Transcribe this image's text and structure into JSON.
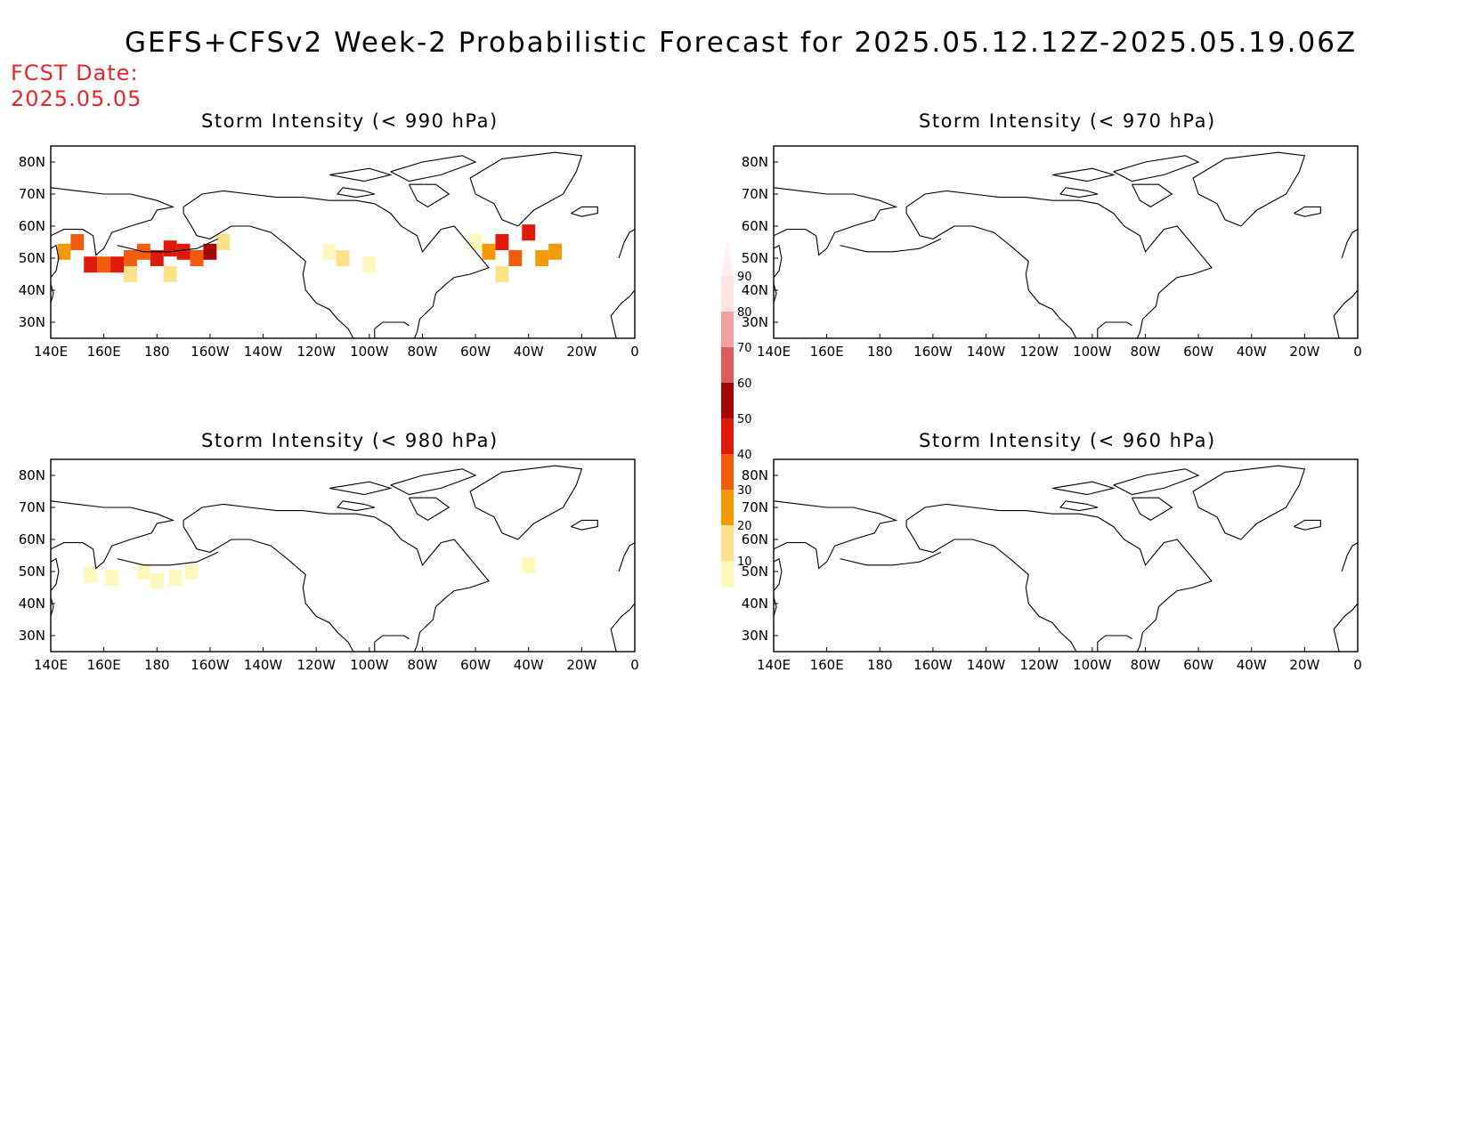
{
  "title": "GEFS+CFSv2 Week-2 Probabilistic Forecast for 2025.05.12.12Z-2025.05.19.06Z",
  "fcst_date": {
    "label": "FCST Date:",
    "value": "2025.05.05"
  },
  "axes": {
    "lon_ticks": [
      "140E",
      "160E",
      "180",
      "160W",
      "140W",
      "120W",
      "100W",
      "80W",
      "60W",
      "40W",
      "20W",
      "0"
    ],
    "lat_ticks": [
      "80N",
      "70N",
      "60N",
      "50N",
      "40N",
      "30N"
    ],
    "lon_range_deg_east": [
      140,
      360
    ],
    "lat_range": [
      25,
      85
    ]
  },
  "panels": [
    {
      "id": "p990",
      "title": "Storm Intensity (< 990 hPa)",
      "shading": [
        {
          "lon": 145,
          "lat": 52,
          "p": 35
        },
        {
          "lon": 150,
          "lat": 55,
          "p": 40
        },
        {
          "lon": 155,
          "lat": 48,
          "p": 55
        },
        {
          "lon": 160,
          "lat": 48,
          "p": 45
        },
        {
          "lon": 165,
          "lat": 48,
          "p": 50
        },
        {
          "lon": 170,
          "lat": 50,
          "p": 40
        },
        {
          "lon": 175,
          "lat": 52,
          "p": 45
        },
        {
          "lon": 180,
          "lat": 50,
          "p": 50
        },
        {
          "lon": 185,
          "lat": 53,
          "p": 55
        },
        {
          "lon": 190,
          "lat": 52,
          "p": 50
        },
        {
          "lon": 195,
          "lat": 50,
          "p": 45
        },
        {
          "lon": 200,
          "lat": 52,
          "p": 60
        },
        {
          "lon": 205,
          "lat": 55,
          "p": 20
        },
        {
          "lon": 170,
          "lat": 45,
          "p": 20
        },
        {
          "lon": 185,
          "lat": 45,
          "p": 20
        },
        {
          "lon": 245,
          "lat": 52,
          "p": 15
        },
        {
          "lon": 250,
          "lat": 50,
          "p": 20
        },
        {
          "lon": 260,
          "lat": 48,
          "p": 15
        },
        {
          "lon": 300,
          "lat": 55,
          "p": 15
        },
        {
          "lon": 305,
          "lat": 52,
          "p": 35
        },
        {
          "lon": 310,
          "lat": 55,
          "p": 55
        },
        {
          "lon": 315,
          "lat": 50,
          "p": 40
        },
        {
          "lon": 320,
          "lat": 58,
          "p": 50
        },
        {
          "lon": 325,
          "lat": 50,
          "p": 35
        },
        {
          "lon": 330,
          "lat": 52,
          "p": 30
        },
        {
          "lon": 310,
          "lat": 45,
          "p": 25
        }
      ]
    },
    {
      "id": "p970",
      "title": "Storm Intensity (< 970 hPa)",
      "shading": []
    },
    {
      "id": "p980",
      "title": "Storm Intensity (< 980 hPa)",
      "shading": [
        {
          "lon": 155,
          "lat": 49,
          "p": 12
        },
        {
          "lon": 163,
          "lat": 48,
          "p": 12
        },
        {
          "lon": 175,
          "lat": 50,
          "p": 11
        },
        {
          "lon": 180,
          "lat": 47,
          "p": 12
        },
        {
          "lon": 187,
          "lat": 48,
          "p": 12
        },
        {
          "lon": 193,
          "lat": 50,
          "p": 11
        },
        {
          "lon": 320,
          "lat": 52,
          "p": 11
        }
      ]
    },
    {
      "id": "p960",
      "title": "Storm Intensity (< 960 hPa)",
      "shading": []
    }
  ],
  "legend": {
    "labels": [
      "90",
      "80",
      "70",
      "60",
      "50",
      "40",
      "30",
      "20",
      "10"
    ],
    "colors": [
      "#fde3e3",
      "#f2a2a4",
      "#dd5d5e",
      "#a50608",
      "#e01a0b",
      "#f25c0d",
      "#f49a09",
      "#fce28a",
      "#fff7bd"
    ]
  }
}
